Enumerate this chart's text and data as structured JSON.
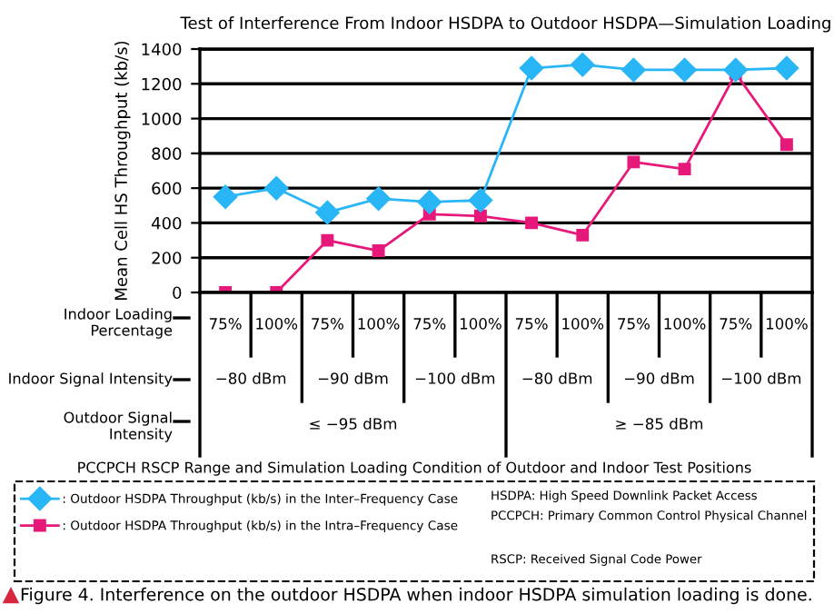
{
  "chart_data": {
    "type": "line",
    "title": "Test of Interference From Indoor HSDPA to Outdoor HSDPA—Simulation Loading",
    "ylabel": "Mean Cell HS Throughput (kb/s)",
    "categories": [
      "75%",
      "100%",
      "75%",
      "100%",
      "75%",
      "100%",
      "75%",
      "100%",
      "75%",
      "100%",
      "75%",
      "100%"
    ],
    "series": [
      {
        "name": ": Outdoor HSDPA Throughput (kb/s) in the Inter–Frequency Case",
        "color": "#29b6f6",
        "marker": "diamond",
        "values": [
          550,
          600,
          460,
          540,
          520,
          530,
          1290,
          1310,
          1280,
          1280,
          1280,
          1290
        ]
      },
      {
        "name": ": Outdoor HSDPA Throughput (kb/s) in the Intra–Frequency Case",
        "color": "#e6197a",
        "marker": "square",
        "values": [
          0,
          0,
          300,
          240,
          450,
          440,
          400,
          330,
          750,
          710,
          1260,
          850
        ]
      }
    ],
    "ylim": [
      0,
      1400
    ],
    "yticks": [
      0,
      200,
      400,
      600,
      800,
      1000,
      1200,
      1400
    ],
    "grid": "y",
    "legend": "bottom",
    "line_style": "solid",
    "annotations": [
      "Indoor Loading\nPercentage",
      "Indoor Signal Intensity",
      "Outdoor Signal\nIntensity",
      "−80 dBm",
      "−90 dBm",
      "−100 dBm",
      "−80 dBm",
      "−90 dBm",
      "−100 dBm",
      "≤ −95 dBm",
      "≥ −85 dBm",
      "HSDPA: High Speed Downlink Packet Access",
      "PCCPCH: Primary Common Control Physical Channel",
      "RSCP: Received Signal Code Power",
      "Figure 4. Interference on the outdoor HSDPA when indoor HSDPA simulation loading is done.",
      "PCCPCH RSCP Range and Simulation Loading Condition of Outdoor and Indoor Test Positions"
    ]
  }
}
